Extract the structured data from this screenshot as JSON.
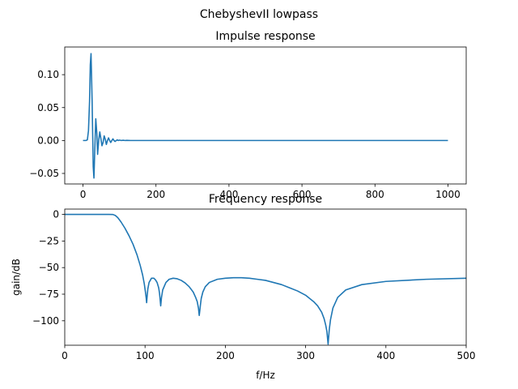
{
  "figure": {
    "suptitle": "ChebyshevII lowpass",
    "line_color": "#1f77b4"
  },
  "chart_data": [
    {
      "type": "line",
      "title": "Impulse response",
      "xlabel": "",
      "ylabel": "",
      "xlim": [
        -50,
        1050
      ],
      "ylim": [
        -0.066,
        0.142
      ],
      "xticks": [
        0,
        200,
        400,
        600,
        800,
        1000
      ],
      "xtick_labels": [
        "0",
        "200",
        "400",
        "600",
        "800",
        "1000"
      ],
      "yticks": [
        -0.05,
        0.0,
        0.05,
        0.1
      ],
      "ytick_labels": [
        "−0.05",
        "0.00",
        "0.05",
        "0.10"
      ],
      "grid": false,
      "legend": "none",
      "series": [
        {
          "x": [
            0,
            8,
            12,
            15,
            18,
            20,
            22,
            25,
            28,
            30,
            32,
            35,
            38,
            40,
            43,
            46,
            49,
            52,
            55,
            58,
            61,
            64,
            67,
            70,
            73,
            76,
            79,
            82,
            85,
            88,
            91,
            94,
            97,
            100,
            105,
            110,
            115,
            120,
            130,
            150,
            200,
            400,
            600,
            800,
            1000
          ],
          "y": [
            0.0,
            0.0,
            0.001,
            0.015,
            0.06,
            0.115,
            0.132,
            0.06,
            -0.04,
            -0.057,
            -0.02,
            0.033,
            0.01,
            -0.021,
            0.0,
            0.013,
            0.003,
            -0.008,
            -0.003,
            0.007,
            0.002,
            -0.006,
            0.0,
            0.004,
            0.0,
            -0.003,
            0.0,
            0.0025,
            0.0,
            -0.0015,
            0.0,
            0.001,
            0.0,
            0.0006,
            0.0,
            0.0004,
            0.0,
            0.0002,
            0.0,
            0.0,
            0.0,
            0.0,
            0.0,
            0.0,
            0.0
          ]
        }
      ]
    },
    {
      "type": "line",
      "title": "Frequency response",
      "xlabel": "f/Hz",
      "ylabel": "gain/dB",
      "xlim": [
        0,
        500
      ],
      "ylim": [
        -123,
        5
      ],
      "xticks": [
        0,
        100,
        200,
        300,
        400,
        500
      ],
      "xtick_labels": [
        "0",
        "100",
        "200",
        "300",
        "400",
        "500"
      ],
      "yticks": [
        0,
        -25,
        -50,
        -75,
        -100
      ],
      "ytick_labels": [
        "0",
        "−25",
        "−50",
        "−75",
        "−100"
      ],
      "grid": false,
      "legend": "none",
      "series": [
        {
          "x": [
            0,
            20,
            40,
            55,
            60,
            63,
            66,
            70,
            75,
            80,
            85,
            90,
            94,
            97,
            99,
            100.5,
            101.5,
            102,
            102.5,
            103.5,
            105,
            108,
            111,
            113,
            115,
            117,
            118,
            118.8,
            119.5,
            120.5,
            122,
            126,
            130,
            135,
            140,
            145,
            150,
            155,
            160,
            163,
            165,
            166.5,
            167.5,
            168.3,
            169,
            170,
            172,
            175,
            180,
            190,
            200,
            210,
            220,
            230,
            240,
            250,
            260,
            270,
            280,
            290,
            300,
            310,
            315,
            320,
            323,
            325,
            326.5,
            327.5,
            328,
            328.5,
            329.5,
            331,
            334,
            340,
            350,
            370,
            400,
            450,
            500
          ],
          "y": [
            0,
            0,
            0,
            0,
            -0.1,
            -1,
            -3,
            -7,
            -13,
            -20,
            -28,
            -38,
            -48,
            -57,
            -65,
            -73,
            -79,
            -83,
            -78,
            -70,
            -64,
            -60,
            -60,
            -61.5,
            -64,
            -69,
            -74,
            -80,
            -86,
            -78,
            -71,
            -64,
            -61,
            -60,
            -60.5,
            -62,
            -64.5,
            -68,
            -73,
            -78,
            -82,
            -88,
            -95,
            -90,
            -85,
            -79,
            -73,
            -68,
            -64,
            -61,
            -60,
            -59.5,
            -59.5,
            -60,
            -61,
            -62,
            -64,
            -66,
            -69,
            -72,
            -76,
            -82,
            -86,
            -92,
            -98,
            -104,
            -110,
            -118,
            -122,
            -117,
            -108,
            -99,
            -88,
            -78,
            -71,
            -66,
            -63,
            -61,
            -60
          ]
        }
      ]
    }
  ]
}
